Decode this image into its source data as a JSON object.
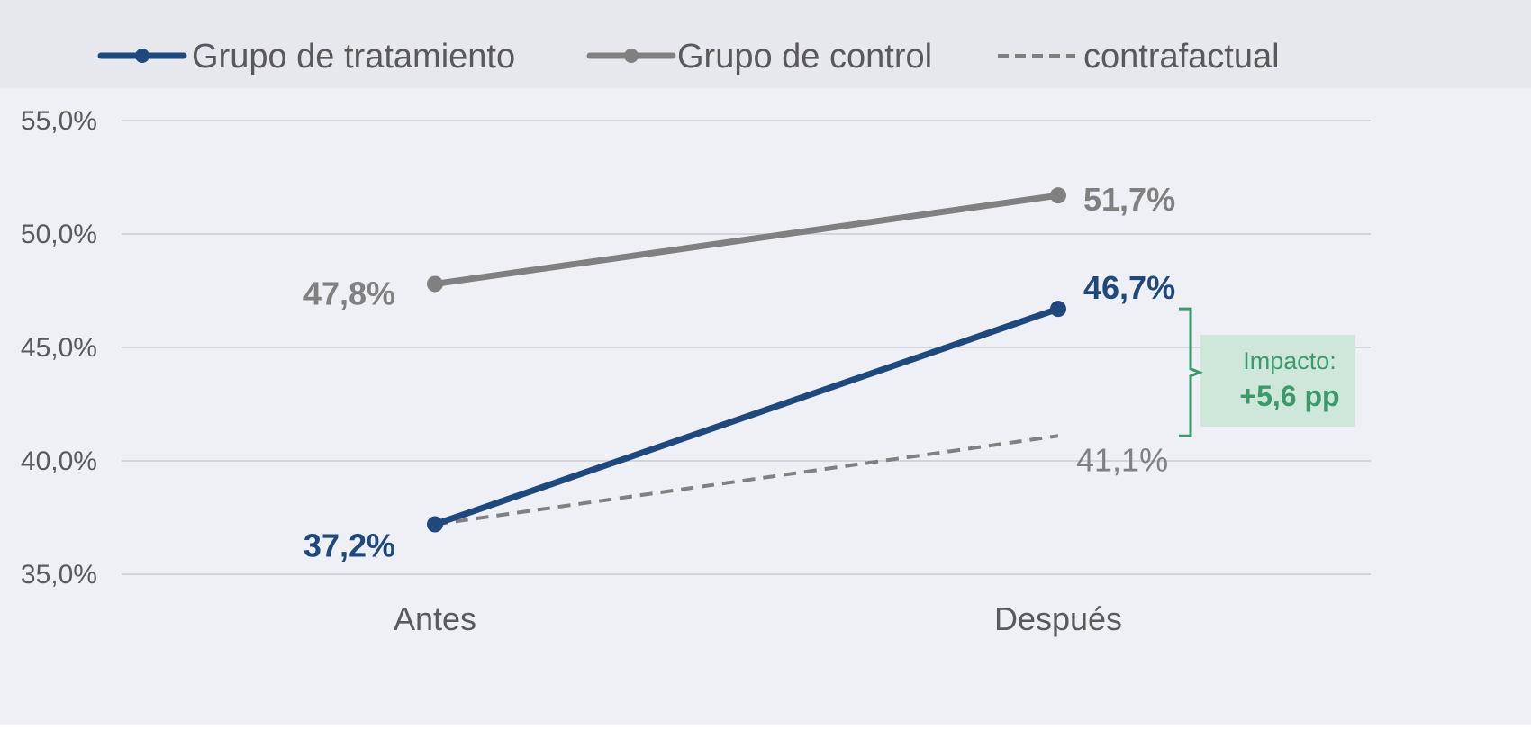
{
  "chart_data": {
    "type": "line",
    "categories": [
      "Antes",
      "Después"
    ],
    "ylim": [
      35.0,
      55.0
    ],
    "yticks": [
      35.0,
      40.0,
      45.0,
      50.0,
      55.0
    ],
    "ytick_labels": [
      "35,0%",
      "40,0%",
      "45,0%",
      "50,0%",
      "55,0%"
    ],
    "grid": true,
    "legend_position": "top",
    "series": [
      {
        "name": "Grupo de tratamiento",
        "values": [
          37.2,
          46.7
        ],
        "labels": [
          "37,2%",
          "46,7%"
        ],
        "color": "#1f497d",
        "style": "solid",
        "markers": true,
        "bold_labels": true
      },
      {
        "name": "Grupo de control",
        "values": [
          47.8,
          51.7
        ],
        "labels": [
          "47,8%",
          "51,7%"
        ],
        "color": "#808080",
        "style": "solid",
        "markers": true,
        "bold_labels": true
      },
      {
        "name": "contrafactual",
        "values": [
          37.2,
          41.1
        ],
        "labels": [
          "",
          "41,1%"
        ],
        "color": "#808080",
        "style": "dashed",
        "markers": false,
        "bold_labels": false
      }
    ],
    "annotation": {
      "title": "Impacto:",
      "value": "+5,6 pp",
      "color": "#3a9a6a",
      "box_color": "#cfe6da",
      "from": 41.1,
      "to": 46.7
    }
  }
}
